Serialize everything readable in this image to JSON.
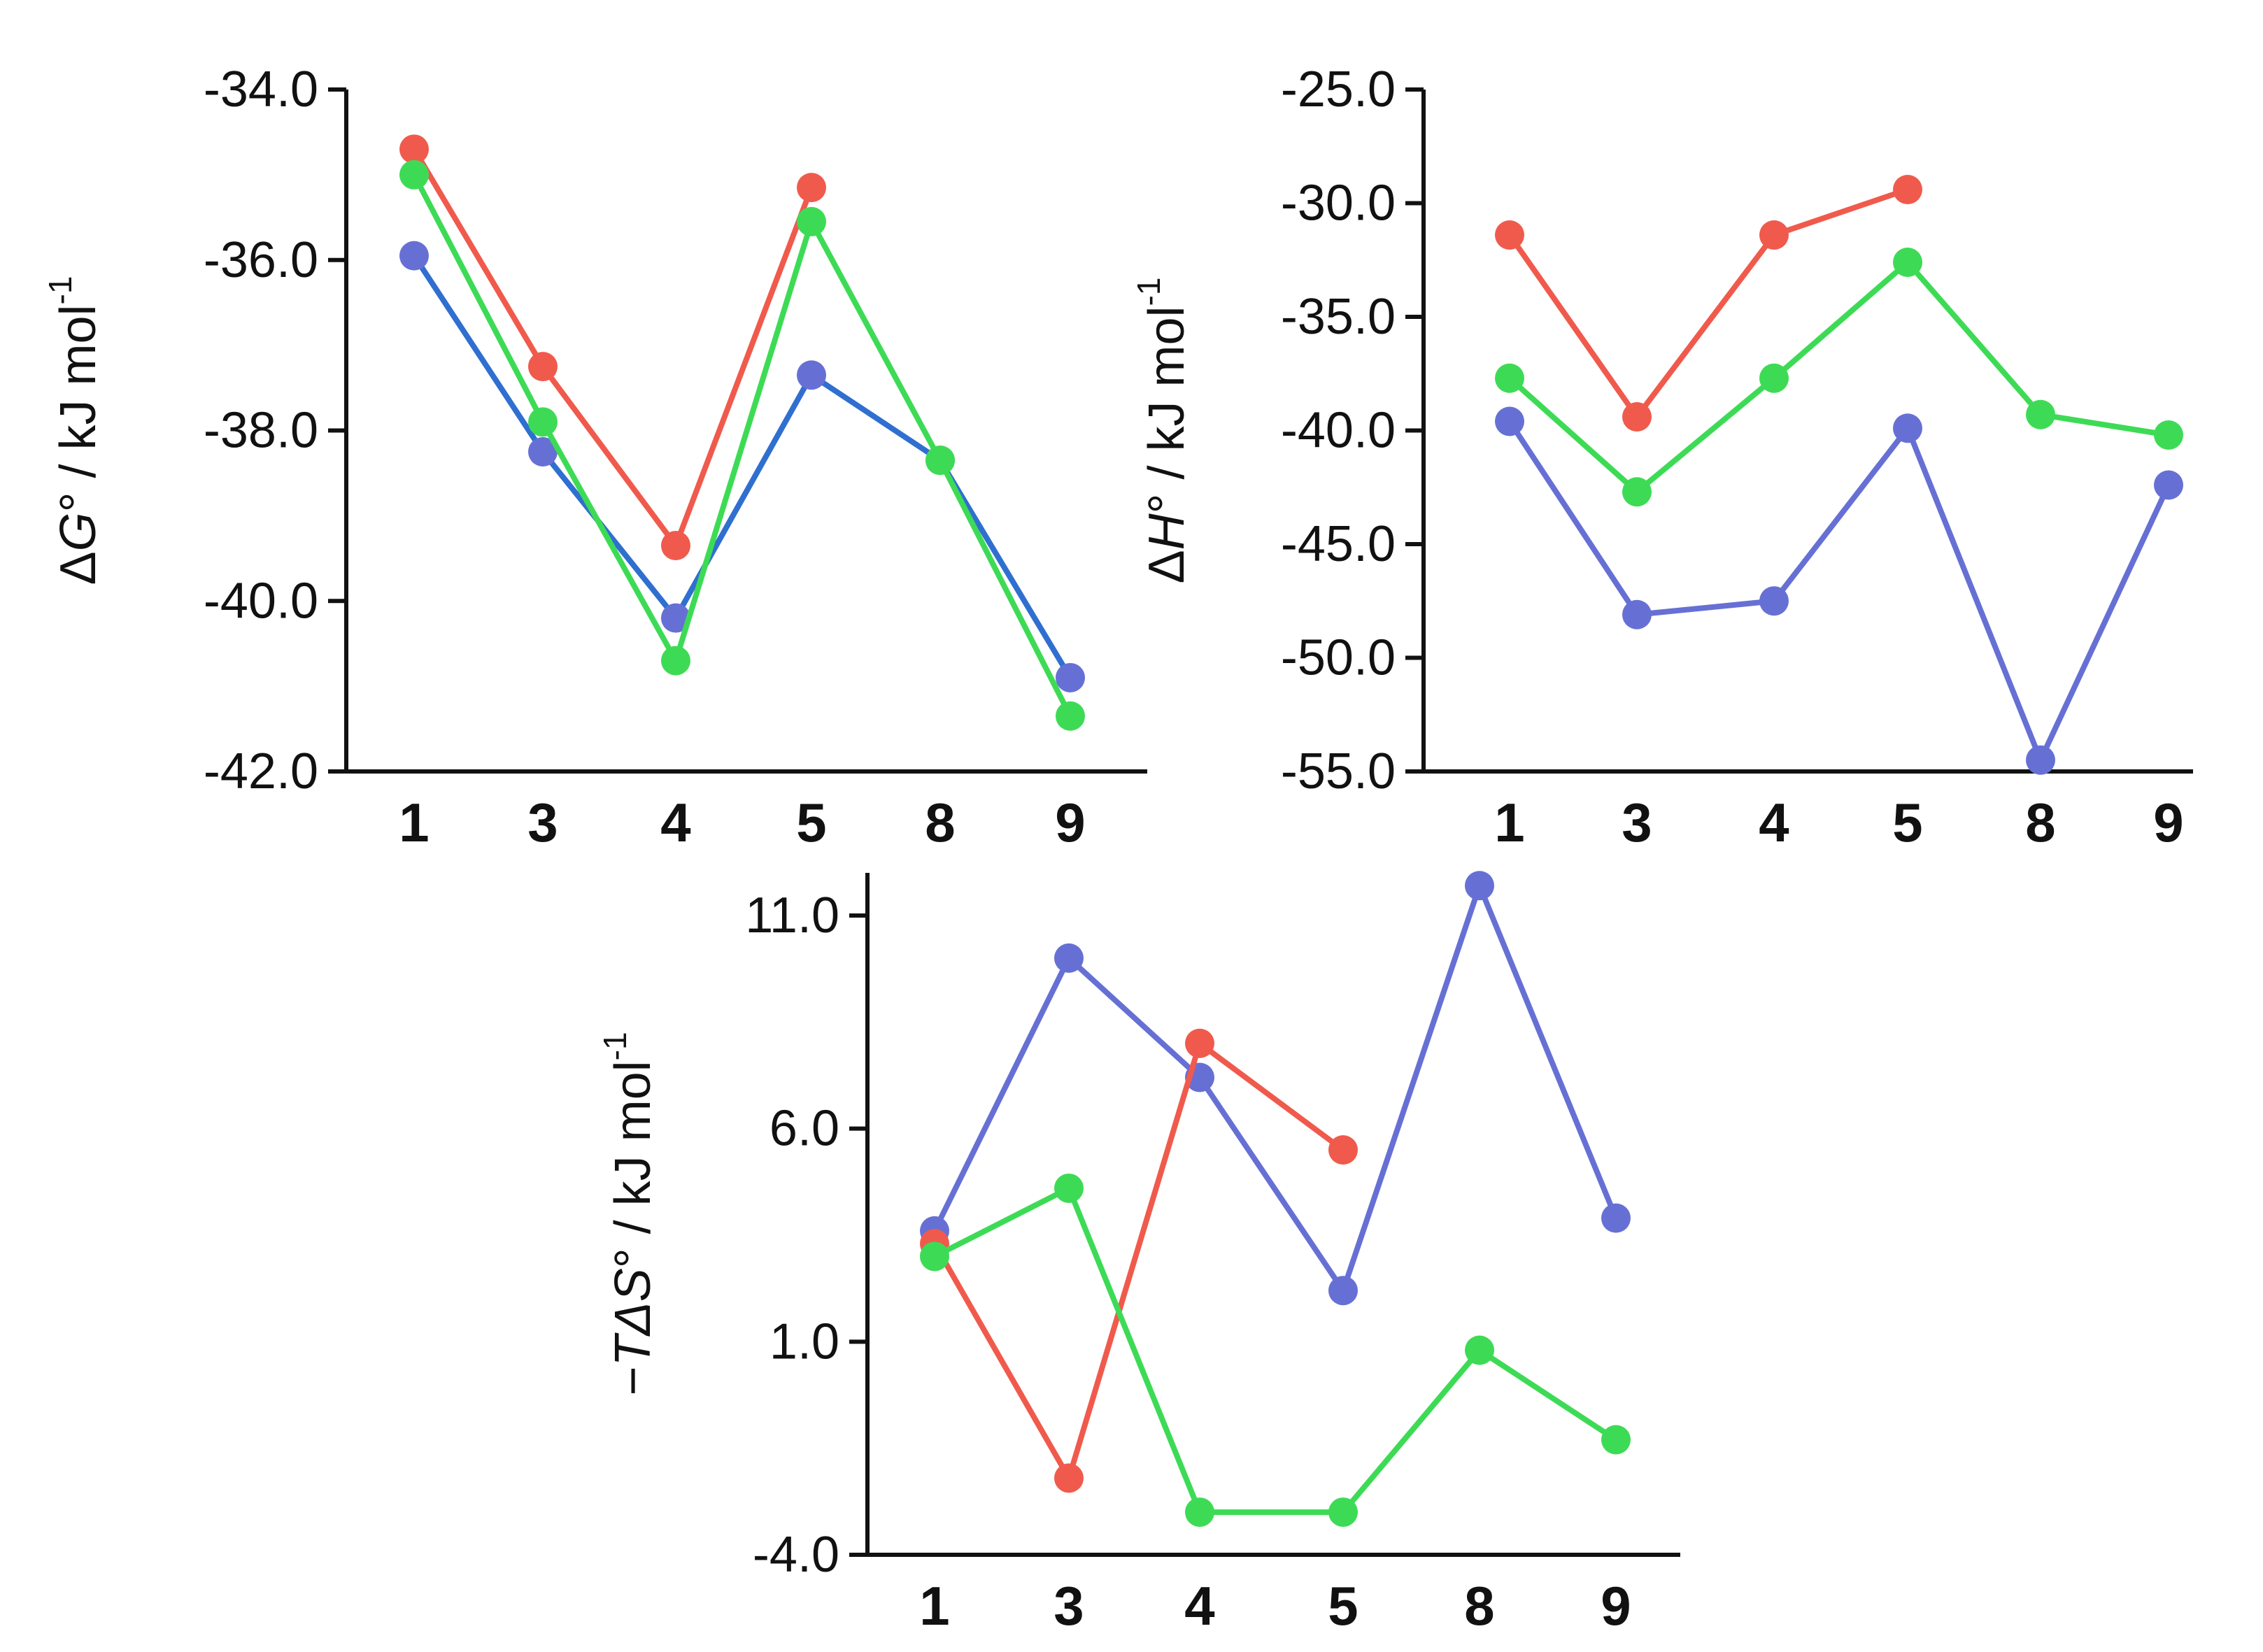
{
  "chart_data": [
    {
      "type": "line",
      "ylabel_prefix": "Δ",
      "ylabel_var": "G",
      "ylabel_suffix": "° / kJ mol",
      "ylabel_sup": "-1",
      "categories": [
        "1",
        "3",
        "4",
        "5",
        "8",
        "9"
      ],
      "ylim": [
        -42.0,
        -34.0
      ],
      "yticks": [
        -34.0,
        -36.0,
        -38.0,
        -40.0,
        -42.0
      ],
      "ytick_labels": [
        "-34.0",
        "-36.0",
        "-38.0",
        "-40.0",
        "-42.0"
      ],
      "series": [
        {
          "name": "blue",
          "color": "#6670d4",
          "line_color": "#2f6fd0",
          "values": [
            -35.95,
            -38.25,
            -40.2,
            -37.35,
            -38.35,
            -40.9
          ]
        },
        {
          "name": "red",
          "color": "#f05a4c",
          "line_color": "#f05a4c",
          "values": [
            -34.7,
            -37.25,
            -39.35,
            -35.15,
            null,
            null
          ]
        },
        {
          "name": "green",
          "color": "#3ddb55",
          "line_color": "#3ddb55",
          "values": [
            -35.0,
            -37.9,
            -40.7,
            -35.55,
            -38.35,
            -41.35
          ]
        }
      ]
    },
    {
      "type": "line",
      "ylabel_prefix": "Δ",
      "ylabel_var": "H",
      "ylabel_suffix": "° / kJ mol",
      "ylabel_sup": "-1",
      "categories": [
        "1",
        "3",
        "4",
        "5",
        "8",
        "9"
      ],
      "ylim": [
        -55.0,
        -25.0
      ],
      "yticks": [
        -25.0,
        -30.0,
        -35.0,
        -40.0,
        -45.0,
        -50.0,
        -55.0
      ],
      "ytick_labels": [
        "-25.0",
        "-30.0",
        "-35.0",
        "-40.0",
        "-45.0",
        "-50.0",
        "-55.0"
      ],
      "series": [
        {
          "name": "blue",
          "color": "#6670d4",
          "line_color": "#6670d4",
          "values": [
            -39.6,
            -48.1,
            -47.5,
            -39.9,
            -54.5,
            -42.4
          ]
        },
        {
          "name": "red",
          "color": "#f05a4c",
          "line_color": "#f05a4c",
          "values": [
            -31.4,
            -39.4,
            -31.4,
            -29.4,
            null,
            null
          ]
        },
        {
          "name": "green",
          "color": "#3ddb55",
          "line_color": "#3ddb55",
          "values": [
            -37.7,
            -42.7,
            -37.7,
            -32.6,
            -39.3,
            -40.2
          ]
        }
      ]
    },
    {
      "type": "line",
      "ylabel_prefix": "−",
      "ylabel_var": "TΔS",
      "ylabel_suffix": "° / kJ mol",
      "ylabel_sup": "-1",
      "categories": [
        "1",
        "3",
        "4",
        "5",
        "8",
        "9"
      ],
      "ylim": [
        -4.0,
        12.0
      ],
      "yticks": [
        11.0,
        6.0,
        1.0,
        -4.0
      ],
      "ytick_labels": [
        "11.0",
        "6.0",
        "1.0",
        "-4.0"
      ],
      "series": [
        {
          "name": "blue",
          "color": "#6670d4",
          "line_color": "#6670d4",
          "values": [
            3.6,
            10.0,
            7.2,
            2.2,
            11.7,
            3.9
          ]
        },
        {
          "name": "red",
          "color": "#f05a4c",
          "line_color": "#f05a4c",
          "values": [
            3.3,
            -2.2,
            8.0,
            5.5,
            null,
            null
          ]
        },
        {
          "name": "green",
          "color": "#3ddb55",
          "line_color": "#3ddb55",
          "values": [
            3.0,
            4.6,
            -3.0,
            -3.0,
            0.8,
            -1.3
          ]
        }
      ]
    }
  ]
}
